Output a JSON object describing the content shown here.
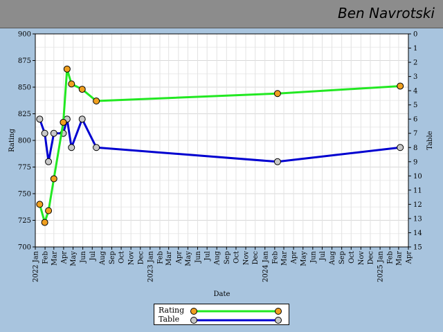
{
  "header": {
    "name": "Ben Navrotski"
  },
  "colors": {
    "background": "#a8c4de",
    "header": "#8c8c8c",
    "rating_line": "#22e822",
    "rating_marker": "#f0a020",
    "table_line": "#0000d0",
    "table_marker": "#c8c8c8"
  },
  "chart_data": {
    "type": "line",
    "xlabel": "Date",
    "ylabel_left": "Rating",
    "ylabel_right": "Table",
    "ylim_left": [
      700,
      900
    ],
    "yticks_left": [
      700,
      725,
      750,
      775,
      800,
      825,
      850,
      875,
      900
    ],
    "ylim_right": [
      15,
      0
    ],
    "yticks_right": [
      0,
      1,
      2,
      3,
      4,
      5,
      6,
      7,
      8,
      9,
      10,
      11,
      12,
      13,
      14,
      15
    ],
    "xlim": [
      "2022-01-01",
      "2025-04-01"
    ],
    "x_tick_labels": [
      {
        "date": "2022-01-01",
        "label": "2022 Jan"
      },
      {
        "date": "2022-02-01",
        "label": "Feb"
      },
      {
        "date": "2022-03-01",
        "label": "Mar"
      },
      {
        "date": "2022-04-01",
        "label": "Apr"
      },
      {
        "date": "2022-05-01",
        "label": "May"
      },
      {
        "date": "2022-06-01",
        "label": "Jun"
      },
      {
        "date": "2022-07-01",
        "label": "Jul"
      },
      {
        "date": "2022-08-01",
        "label": "Aug"
      },
      {
        "date": "2022-09-01",
        "label": "Sep"
      },
      {
        "date": "2022-10-01",
        "label": "Oct"
      },
      {
        "date": "2022-11-01",
        "label": "Nov"
      },
      {
        "date": "2022-12-01",
        "label": "Dec"
      },
      {
        "date": "2023-01-01",
        "label": "2023 Jan"
      },
      {
        "date": "2023-02-01",
        "label": "Feb"
      },
      {
        "date": "2023-03-01",
        "label": "Mar"
      },
      {
        "date": "2023-04-01",
        "label": "Apr"
      },
      {
        "date": "2023-05-01",
        "label": "May"
      },
      {
        "date": "2023-06-01",
        "label": "Jun"
      },
      {
        "date": "2023-07-01",
        "label": "Jul"
      },
      {
        "date": "2023-08-01",
        "label": "Aug"
      },
      {
        "date": "2023-09-01",
        "label": "Sep"
      },
      {
        "date": "2023-10-01",
        "label": "Oct"
      },
      {
        "date": "2023-11-01",
        "label": "Nov"
      },
      {
        "date": "2023-12-01",
        "label": "Dec"
      },
      {
        "date": "2024-01-01",
        "label": "2024 Jan"
      },
      {
        "date": "2024-02-01",
        "label": "Feb"
      },
      {
        "date": "2024-03-01",
        "label": "Mar"
      },
      {
        "date": "2024-04-01",
        "label": "Apr"
      },
      {
        "date": "2024-05-01",
        "label": "May"
      },
      {
        "date": "2024-06-01",
        "label": "Jun"
      },
      {
        "date": "2024-07-01",
        "label": "Jul"
      },
      {
        "date": "2024-08-01",
        "label": "Aug"
      },
      {
        "date": "2024-09-01",
        "label": "Sep"
      },
      {
        "date": "2024-10-01",
        "label": "Oct"
      },
      {
        "date": "2024-11-01",
        "label": "Nov"
      },
      {
        "date": "2024-12-01",
        "label": "Dec"
      },
      {
        "date": "2025-01-01",
        "label": "2025 Jan"
      },
      {
        "date": "2025-02-01",
        "label": "Feb"
      },
      {
        "date": "2025-03-01",
        "label": "Mar"
      },
      {
        "date": "2025-04-01",
        "label": "Apr"
      }
    ],
    "grid": true,
    "legend_position": "bottom-center",
    "series": [
      {
        "name": "Rating",
        "axis": "left",
        "points": [
          {
            "x": "2022-01-15",
            "y": 740
          },
          {
            "x": "2022-01-31",
            "y": 723
          },
          {
            "x": "2022-02-12",
            "y": 734
          },
          {
            "x": "2022-03-01",
            "y": 764
          },
          {
            "x": "2022-03-31",
            "y": 817
          },
          {
            "x": "2022-04-12",
            "y": 867
          },
          {
            "x": "2022-04-26",
            "y": 853
          },
          {
            "x": "2022-05-30",
            "y": 848
          },
          {
            "x": "2022-07-14",
            "y": 837
          },
          {
            "x": "2024-02-10",
            "y": 844
          },
          {
            "x": "2025-03-06",
            "y": 851
          }
        ]
      },
      {
        "name": "Table",
        "axis": "right",
        "points": [
          {
            "x": "2022-01-15",
            "y": 6
          },
          {
            "x": "2022-01-31",
            "y": 7
          },
          {
            "x": "2022-02-12",
            "y": 9
          },
          {
            "x": "2022-03-01",
            "y": 7
          },
          {
            "x": "2022-03-31",
            "y": 7
          },
          {
            "x": "2022-04-12",
            "y": 6
          },
          {
            "x": "2022-04-26",
            "y": 8
          },
          {
            "x": "2022-05-30",
            "y": 6
          },
          {
            "x": "2022-07-14",
            "y": 8
          },
          {
            "x": "2024-02-10",
            "y": 9
          },
          {
            "x": "2025-03-06",
            "y": 8
          }
        ]
      }
    ]
  }
}
